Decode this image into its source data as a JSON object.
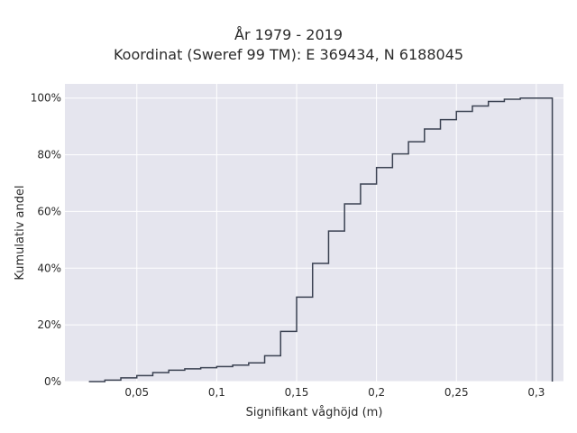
{
  "chart_data": {
    "type": "line",
    "title": "År 1979 - 2019",
    "subtitle": "Koordinat (Sweref 99 TM): E 369434, N 6188045",
    "xlabel": "Signifikant våghöjd (m)",
    "ylabel": "Kumulativ andel",
    "xlim": [
      0.005,
      0.317
    ],
    "ylim": [
      0,
      1.05
    ],
    "x_ticks": [
      0.05,
      0.1,
      0.15,
      0.2,
      0.25,
      0.3
    ],
    "x_tick_labels": [
      "0,05",
      "0,1",
      "0,15",
      "0,2",
      "0,25",
      "0,3"
    ],
    "y_ticks": [
      0,
      0.2,
      0.4,
      0.6,
      0.8,
      1.0
    ],
    "y_tick_labels": [
      "0%",
      "20%",
      "40%",
      "60%",
      "80%",
      "100%"
    ],
    "step_edges": [
      0.02,
      0.03,
      0.04,
      0.05,
      0.06,
      0.07,
      0.08,
      0.09,
      0.1,
      0.11,
      0.12,
      0.13,
      0.14,
      0.15,
      0.16,
      0.17,
      0.18,
      0.19,
      0.2,
      0.21,
      0.22,
      0.23,
      0.24,
      0.25,
      0.26,
      0.27,
      0.28,
      0.29,
      0.3,
      0.31
    ],
    "step_values": [
      0.0,
      0.005,
      0.013,
      0.021,
      0.032,
      0.04,
      0.045,
      0.049,
      0.053,
      0.058,
      0.066,
      0.091,
      0.177,
      0.298,
      0.417,
      0.531,
      0.627,
      0.697,
      0.755,
      0.803,
      0.846,
      0.891,
      0.924,
      0.953,
      0.972,
      0.988,
      0.996,
      1.0,
      1.0
    ],
    "grid": true,
    "line_color": "#3b4252",
    "plot_bg": "#e5e5ee",
    "grid_color": "#ffffff"
  }
}
